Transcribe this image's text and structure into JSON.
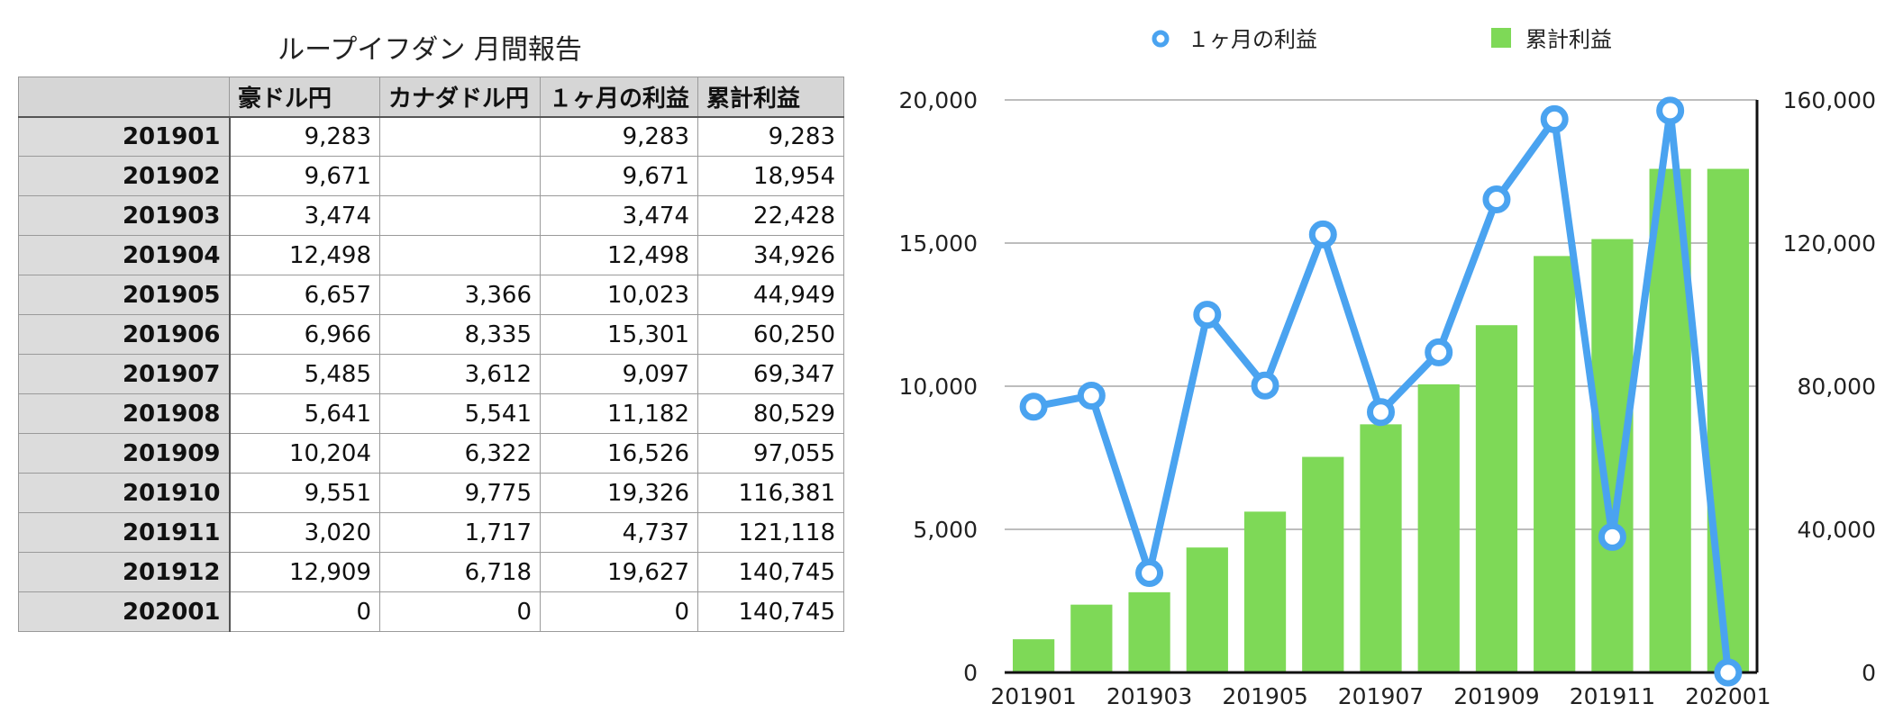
{
  "table": {
    "title": "ループイフダン 月間報告",
    "headers": [
      "",
      "豪ドル円",
      "カナダドル円",
      "１ヶ月の利益",
      "累計利益"
    ],
    "rows": [
      {
        "month": "201901",
        "aud": "9,283",
        "cad": "",
        "monthly": "9,283",
        "cumulative": "9,283"
      },
      {
        "month": "201902",
        "aud": "9,671",
        "cad": "",
        "monthly": "9,671",
        "cumulative": "18,954"
      },
      {
        "month": "201903",
        "aud": "3,474",
        "cad": "",
        "monthly": "3,474",
        "cumulative": "22,428"
      },
      {
        "month": "201904",
        "aud": "12,498",
        "cad": "",
        "monthly": "12,498",
        "cumulative": "34,926"
      },
      {
        "month": "201905",
        "aud": "6,657",
        "cad": "3,366",
        "monthly": "10,023",
        "cumulative": "44,949"
      },
      {
        "month": "201906",
        "aud": "6,966",
        "cad": "8,335",
        "monthly": "15,301",
        "cumulative": "60,250"
      },
      {
        "month": "201907",
        "aud": "5,485",
        "cad": "3,612",
        "monthly": "9,097",
        "cumulative": "69,347"
      },
      {
        "month": "201908",
        "aud": "5,641",
        "cad": "5,541",
        "monthly": "11,182",
        "cumulative": "80,529"
      },
      {
        "month": "201909",
        "aud": "10,204",
        "cad": "6,322",
        "monthly": "16,526",
        "cumulative": "97,055"
      },
      {
        "month": "201910",
        "aud": "9,551",
        "cad": "9,775",
        "monthly": "19,326",
        "cumulative": "116,381"
      },
      {
        "month": "201911",
        "aud": "3,020",
        "cad": "1,717",
        "monthly": "4,737",
        "cumulative": "121,118"
      },
      {
        "month": "201912",
        "aud": "12,909",
        "cad": "6,718",
        "monthly": "19,627",
        "cumulative": "140,745"
      },
      {
        "month": "202001",
        "aud": "0",
        "cad": "0",
        "monthly": "0",
        "cumulative": "140,745"
      }
    ]
  },
  "chart_data": {
    "type": "bar",
    "categories": [
      "201901",
      "201902",
      "201903",
      "201904",
      "201905",
      "201906",
      "201907",
      "201908",
      "201909",
      "201910",
      "201911",
      "201912",
      "202001"
    ],
    "x_tick_labels": [
      "201901",
      "201903",
      "201905",
      "201907",
      "201909",
      "201911",
      "202001"
    ],
    "series": [
      {
        "name": "１ヶ月の利益",
        "type": "line",
        "axis": "left",
        "color": "#4aa3f0",
        "values": [
          9283,
          9671,
          3474,
          12498,
          10023,
          15301,
          9097,
          11182,
          16526,
          19326,
          4737,
          19627,
          0
        ]
      },
      {
        "name": "累計利益",
        "type": "bar",
        "axis": "right",
        "color": "#7ed957",
        "values": [
          9283,
          18954,
          22428,
          34926,
          44949,
          60250,
          69347,
          80529,
          97055,
          116381,
          121118,
          140745,
          140745
        ]
      }
    ],
    "ylim_left": [
      0,
      20000
    ],
    "yticks_left": [
      "0",
      "5,000",
      "10,000",
      "15,000",
      "20,000"
    ],
    "ylim_right": [
      0,
      160000
    ],
    "yticks_right": [
      "0",
      "40,000",
      "80,000",
      "120,000",
      "160,000"
    ],
    "grid": true,
    "legend_position": "top"
  }
}
